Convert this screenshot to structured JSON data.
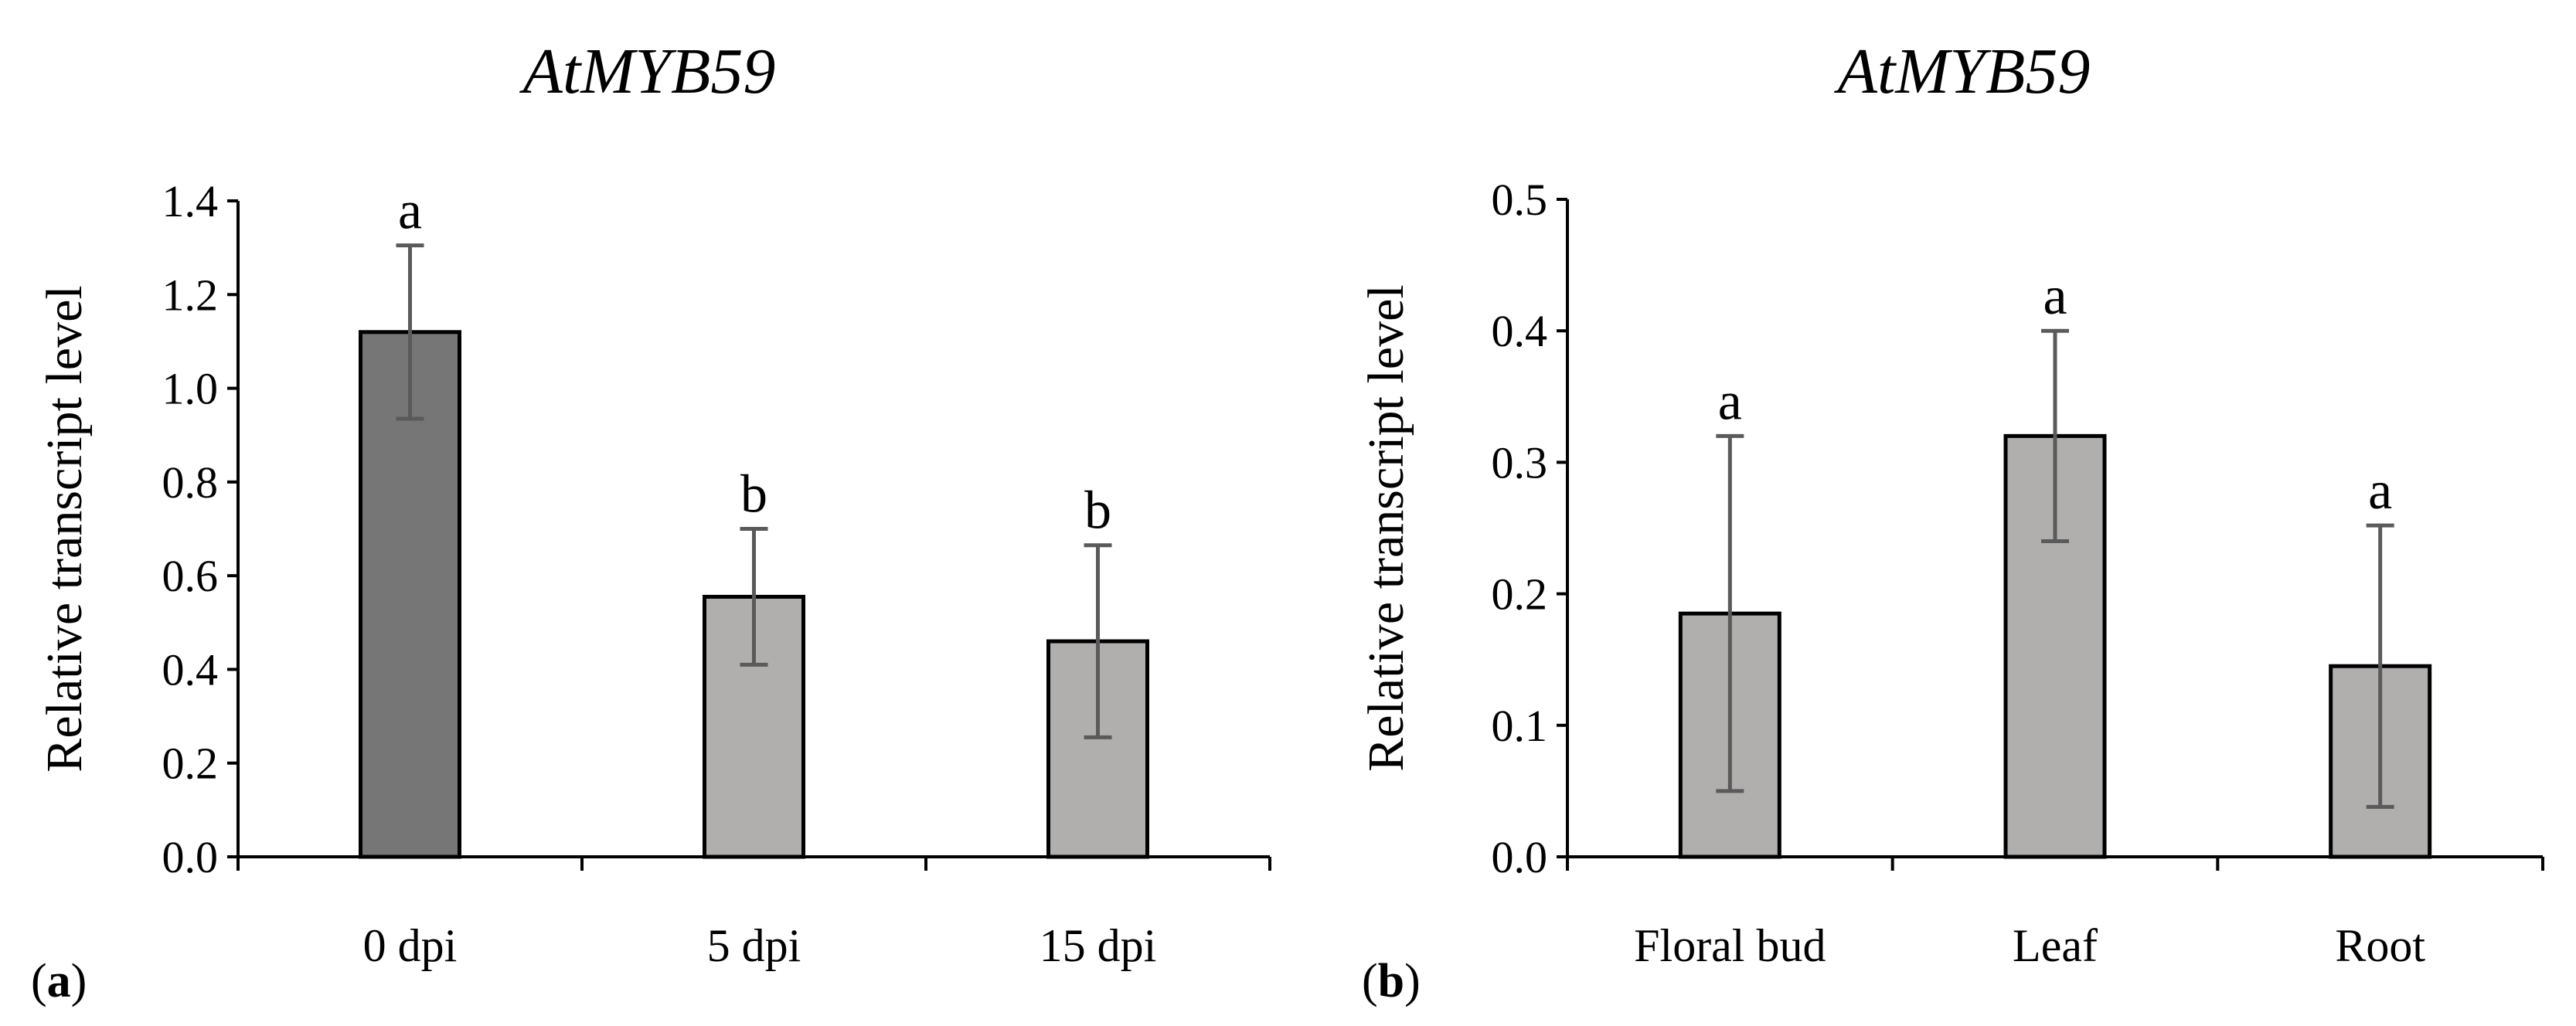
{
  "chart_data": [
    {
      "type": "bar",
      "panel": "a",
      "title": "AtMYB59",
      "xlabel": "",
      "ylabel": "Relative transcript level",
      "ylim": [
        0,
        1.4
      ],
      "yticks": [
        "0.0",
        "0.2",
        "0.4",
        "0.6",
        "0.8",
        "1.0",
        "1.2",
        "1.4"
      ],
      "categories": [
        "0 dpi",
        "5 dpi",
        "15 dpi"
      ],
      "values": [
        1.12,
        0.555,
        0.46
      ],
      "errors": [
        0.185,
        0.145,
        0.205
      ],
      "significance": [
        "a",
        "b",
        "b"
      ],
      "colors": [
        "#767676",
        "#b1aeae",
        "#b1aeae"
      ]
    },
    {
      "type": "bar",
      "panel": "b",
      "title": "AtMYB59",
      "xlabel": "",
      "ylabel": "Relative transcript level",
      "ylim": [
        0,
        0.5
      ],
      "yticks": [
        "0.0",
        "0.1",
        "0.2",
        "0.3",
        "0.4",
        "0.5"
      ],
      "categories": [
        "Floral bud",
        "Leaf",
        "Root"
      ],
      "values": [
        0.185,
        0.32,
        0.145
      ],
      "errors": [
        0.135,
        0.08,
        0.107
      ],
      "significance": [
        "a",
        "a",
        "a"
      ],
      "colors": [
        "#b1aeae",
        "#b1aeae",
        "#b1aeae"
      ]
    }
  ],
  "panel_labels": [
    {
      "open": "(",
      "letter": "a",
      "close": ")"
    },
    {
      "open": "(",
      "letter": "b",
      "close": ")"
    }
  ]
}
